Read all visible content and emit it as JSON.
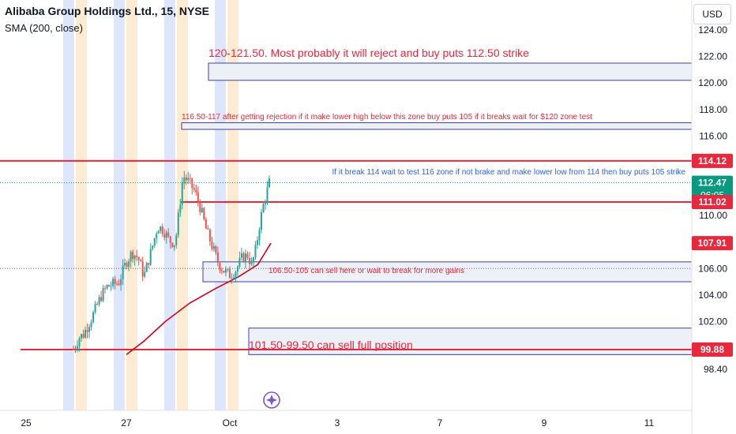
{
  "header": {
    "title": "Alibaba Group Holdings Ltd., 15, NYSE",
    "indicator": "SMA (200, close)",
    "currency_button": "USD"
  },
  "colors": {
    "annotation_red": "#e8283c",
    "annotation_blue": "#2962ff",
    "zone_border": "#3f3fa8",
    "zone_fill": "#eef0f8",
    "candle_up": "#26a69a",
    "candle_down": "#ef5350",
    "sma": "#d5001c",
    "last_price": "#089981",
    "session_blue": "#dde6fb",
    "session_orange": "#fdebd2"
  },
  "chart_data": {
    "type": "candlestick",
    "symbol": "BABA",
    "exchange": "NYSE",
    "interval": "15",
    "ylim": [
      98.4,
      124.8
    ],
    "y_ticks": [
      "98.40",
      "100.00",
      "102.00",
      "104.00",
      "106.00",
      "108.00",
      "110.00",
      "112.00",
      "114.00",
      "116.00",
      "118.00",
      "120.00",
      "122.00",
      "124.00"
    ],
    "x_ticks": [
      "25",
      "27",
      "Oct",
      "3",
      "7",
      "9",
      "11"
    ],
    "price_labels": [
      {
        "value": "114.12",
        "style": "red"
      },
      {
        "value": "112.47",
        "style": "green",
        "sub": "06:05"
      },
      {
        "value": "111.02",
        "style": "red"
      },
      {
        "value": "107.91",
        "style": "red"
      },
      {
        "value": "99.88",
        "style": "red"
      }
    ],
    "horizontal_lines": [
      114.12,
      111.02,
      99.88
    ],
    "zones": [
      {
        "from": 120.2,
        "to": 121.5
      },
      {
        "from": 116.5,
        "to": 117.0
      },
      {
        "from": 105.0,
        "to": 106.5
      },
      {
        "from": 99.5,
        "to": 101.5
      }
    ],
    "annotations": [
      {
        "text": "120-121.50. Most probably it will reject and buy puts 112.50 strike",
        "color": "red"
      },
      {
        "text": "116.50-117 after getting rejection if it make lower high below this zone buy puts 105 if it breaks wait for $120 zone test",
        "color": "red"
      },
      {
        "text": "If it break 114 wait to test 116 zone if not brake and make lower low from 114 then buy puts 105 strike",
        "color": "blue"
      },
      {
        "text": "106.50-105 can sell here or wait to break for more gains",
        "color": "red"
      },
      {
        "text": "101.50-99.50 can sell full position",
        "color": "red"
      }
    ],
    "sma_200": [
      [
        107.91,
        1.0
      ],
      [
        106.3,
        0.91
      ],
      [
        105.4,
        0.78
      ],
      [
        104.5,
        0.62
      ],
      [
        103.4,
        0.44
      ],
      [
        102.0,
        0.27
      ],
      [
        100.5,
        0.12
      ],
      [
        99.5,
        0.0
      ]
    ],
    "candle_path": [
      [
        99.9,
        0.0
      ],
      [
        100.8,
        0.03
      ],
      [
        101.0,
        0.05
      ],
      [
        102.5,
        0.1
      ],
      [
        103.9,
        0.14
      ],
      [
        104.6,
        0.17
      ],
      [
        104.8,
        0.2
      ],
      [
        104.9,
        0.23
      ],
      [
        106.5,
        0.27
      ],
      [
        107.2,
        0.3
      ],
      [
        106.8,
        0.33
      ],
      [
        105.4,
        0.36
      ],
      [
        107.5,
        0.4
      ],
      [
        109.2,
        0.43
      ],
      [
        108.9,
        0.46
      ],
      [
        108.1,
        0.49
      ],
      [
        107.9,
        0.52
      ],
      [
        113.0,
        0.56
      ],
      [
        112.5,
        0.59
      ],
      [
        111.8,
        0.62
      ],
      [
        110.5,
        0.65
      ],
      [
        108.8,
        0.68
      ],
      [
        107.6,
        0.71
      ],
      [
        106.4,
        0.74
      ],
      [
        105.8,
        0.77
      ],
      [
        105.5,
        0.8
      ],
      [
        105.9,
        0.83
      ],
      [
        106.8,
        0.86
      ],
      [
        107.0,
        0.89
      ],
      [
        106.2,
        0.91
      ],
      [
        107.4,
        0.93
      ],
      [
        109.3,
        0.95
      ],
      [
        110.8,
        0.97
      ],
      [
        111.9,
        0.99
      ],
      [
        112.47,
        1.0
      ]
    ],
    "last_price": 112.47,
    "countdown": "06:05"
  }
}
